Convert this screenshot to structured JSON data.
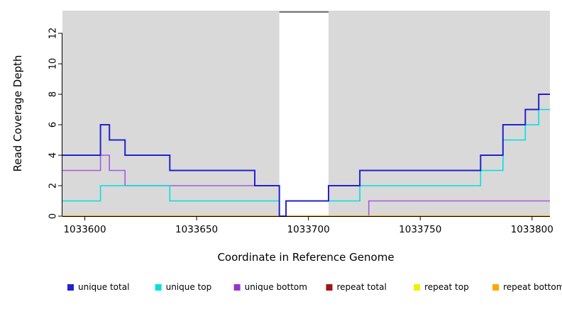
{
  "figure": {
    "background": "#ffffff",
    "plot_background": "#d9d9d9",
    "axis_color": "#000000"
  },
  "chart_data": {
    "type": "line",
    "subtype": "step-coverage-plot",
    "title": "",
    "xlabel": "Coordinate in Reference Genome",
    "ylabel": "Read Coverage Depth",
    "xlim": [
      1033590,
      1033808
    ],
    "ylim": [
      0,
      13.49
    ],
    "x_ticks": [
      1033600,
      1033650,
      1033700,
      1033750,
      1033800
    ],
    "y_ticks": [
      0,
      2,
      4,
      6,
      8,
      10,
      12
    ],
    "grid": false,
    "plot_bg": "#d9d9d9",
    "highlight_region": {
      "x0": 1033687,
      "x1": 1033709,
      "fill": "#ffffff",
      "top_border_color": "#000000"
    },
    "series": [
      {
        "name": "repeat total",
        "color": "#a01515",
        "width": 1.6,
        "points": [
          [
            1033590,
            0
          ],
          [
            1033808,
            0
          ]
        ]
      },
      {
        "name": "repeat top",
        "color": "#efef00",
        "width": 1.6,
        "points": [
          [
            1033590,
            0
          ],
          [
            1033808,
            0
          ]
        ]
      },
      {
        "name": "unique bottom",
        "color": "#a35ae0",
        "width": 1.6,
        "points": [
          [
            1033590,
            3
          ],
          [
            1033607,
            4
          ],
          [
            1033611,
            3
          ],
          [
            1033618,
            2
          ],
          [
            1033687,
            0
          ],
          [
            1033727,
            1
          ],
          [
            1033808,
            1
          ]
        ]
      },
      {
        "name": "repeat bottom",
        "color": "#ffa500",
        "width": 1.8,
        "points": [
          [
            1033590,
            0
          ],
          [
            1033808,
            0
          ]
        ]
      },
      {
        "name": "unique top",
        "color": "#00e0e0",
        "width": 1.6,
        "points": [
          [
            1033590,
            1
          ],
          [
            1033607,
            2
          ],
          [
            1033638,
            1
          ],
          [
            1033687,
            0
          ],
          [
            1033690,
            1
          ],
          [
            1033723,
            2
          ],
          [
            1033777,
            3
          ],
          [
            1033787,
            5
          ],
          [
            1033797,
            6
          ],
          [
            1033803,
            7
          ],
          [
            1033808,
            7
          ]
        ]
      },
      {
        "name": "unique total",
        "color": "#2222cc",
        "width": 2,
        "points": [
          [
            1033590,
            4
          ],
          [
            1033607,
            6
          ],
          [
            1033611,
            5
          ],
          [
            1033618,
            4
          ],
          [
            1033638,
            3
          ],
          [
            1033676,
            2
          ],
          [
            1033687,
            0
          ],
          [
            1033690,
            1
          ],
          [
            1033709,
            2
          ],
          [
            1033723,
            3
          ],
          [
            1033777,
            4
          ],
          [
            1033787,
            6
          ],
          [
            1033797,
            7
          ],
          [
            1033803,
            8
          ],
          [
            1033808,
            8
          ]
        ]
      }
    ],
    "legend": [
      {
        "label": "unique total",
        "color": "#2222cc"
      },
      {
        "label": "unique top",
        "color": "#00e0e0"
      },
      {
        "label": "unique bottom",
        "color": "#9933cc"
      },
      {
        "label": "repeat total",
        "color": "#a01515"
      },
      {
        "label": "repeat top",
        "color": "#efef00"
      },
      {
        "label": "repeat bottom",
        "color": "#ffa500"
      }
    ],
    "legend_position": "bottom"
  }
}
